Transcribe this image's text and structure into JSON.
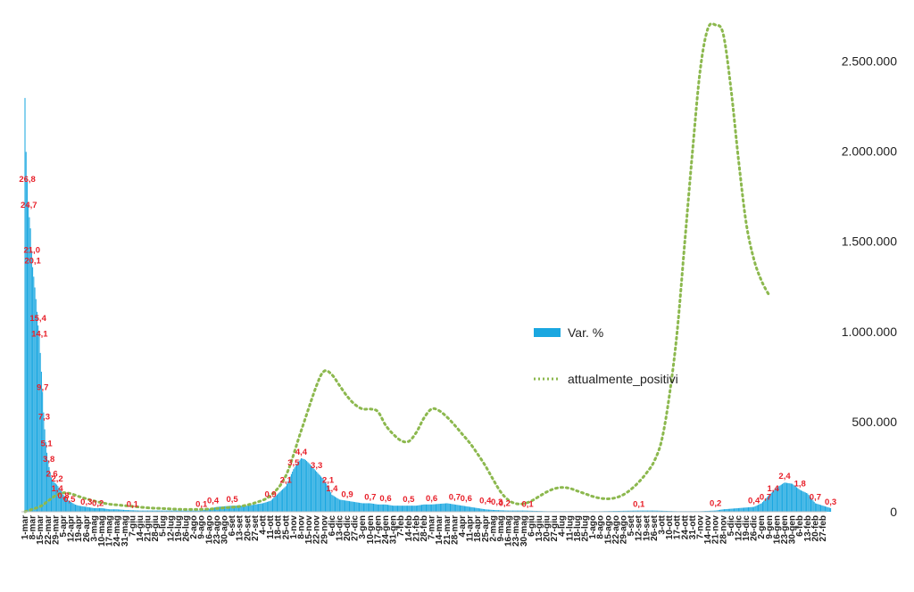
{
  "chart_data": {
    "type": "bar",
    "title": "",
    "xlabel": "",
    "ylabel": "",
    "secondary_ylim": [
      0,
      2700000
    ],
    "secondary_yticks": [
      "0",
      "500.000",
      "1.000.000",
      "1.500.000",
      "2.000.000",
      "2.500.000"
    ],
    "primary_ylim": [
      0,
      40
    ],
    "grid": false,
    "legend_position": "center-right",
    "colors": {
      "bars": "#1aa7e0",
      "line": "#8cb84e",
      "labels": "#e8202a"
    },
    "x_tick_labels": [
      "1-mar",
      "8-mar",
      "15-mar",
      "22-mar",
      "29-mar",
      "5-apr",
      "12-apr",
      "19-apr",
      "26-apr",
      "3-mag",
      "10-mag",
      "17-mag",
      "24-mag",
      "31-mag",
      "7-giu",
      "14-giu",
      "21-giu",
      "28-giu",
      "5-lug",
      "12-lug",
      "19-lug",
      "26-lug",
      "2-ago",
      "9-ago",
      "16-ago",
      "23-ago",
      "30-ago",
      "6-set",
      "13-set",
      "20-set",
      "27-set",
      "4-ott",
      "11-ott",
      "18-ott",
      "25-ott",
      "1-nov",
      "8-nov",
      "15-nov",
      "22-nov",
      "29-nov",
      "6-dic",
      "13-dic",
      "20-dic",
      "27-dic",
      "3-gen",
      "10-gen",
      "17-gen",
      "24-gen",
      "31-gen",
      "7-feb",
      "14-feb",
      "21-feb",
      "28-feb",
      "7-mar",
      "14-mar",
      "21-mar",
      "28-mar",
      "4-apr",
      "11-apr",
      "18-apr",
      "25-apr",
      "2-mag",
      "9-mag",
      "16-mag",
      "23-mag",
      "30-mag",
      "6-giu",
      "13-giu",
      "20-giu",
      "27-giu",
      "4-lug",
      "11-lug",
      "18-lug",
      "25-lug",
      "1-ago",
      "8-ago",
      "15-ago",
      "22-ago",
      "29-ago",
      "5-set",
      "12-set",
      "19-set",
      "26-set",
      "3-ott",
      "10-ott",
      "17-ott",
      "24-ott",
      "31-ott",
      "7-nov",
      "14-nov",
      "21-nov",
      "28-nov",
      "5-dic",
      "12-dic",
      "19-dic",
      "26-dic",
      "2-gen",
      "9-gen",
      "16-gen",
      "23-gen",
      "30-gen",
      "6-feb",
      "13-feb",
      "20-feb",
      "27-feb"
    ],
    "series": [
      {
        "name": "Var. %",
        "type": "bar",
        "axis": "primary",
        "points": [
          [
            0,
            34
          ],
          [
            0.1,
            30
          ],
          [
            0.2,
            29
          ],
          [
            0.3,
            26.8
          ],
          [
            0.4,
            25.5
          ],
          [
            0.5,
            24.7
          ],
          [
            0.6,
            24
          ],
          [
            0.7,
            23.5
          ],
          [
            0.8,
            22
          ],
          [
            0.9,
            21
          ],
          [
            1.0,
            20.1
          ],
          [
            1.2,
            19
          ],
          [
            1.5,
            17
          ],
          [
            1.7,
            15.4
          ],
          [
            1.9,
            14.1
          ],
          [
            2.1,
            12
          ],
          [
            2.3,
            9.7
          ],
          [
            2.5,
            7.3
          ],
          [
            2.8,
            5.1
          ],
          [
            3.1,
            3.8
          ],
          [
            3.5,
            2.6
          ],
          [
            4.2,
            2.2
          ],
          [
            5,
            1.4
          ],
          [
            5.5,
            1.0
          ],
          [
            6,
            0.8
          ],
          [
            6.5,
            0.6
          ],
          [
            7,
            0.5
          ],
          [
            8,
            0.4
          ],
          [
            9,
            0.3
          ],
          [
            10,
            0.3
          ],
          [
            11,
            0.2
          ],
          [
            12,
            0.2
          ],
          [
            13,
            0.15
          ],
          [
            15,
            0.1
          ],
          [
            17,
            0.1
          ],
          [
            20,
            0.1
          ],
          [
            22,
            0.1
          ],
          [
            23,
            0.1
          ],
          [
            25,
            0.4
          ],
          [
            27,
            0.5
          ],
          [
            29,
            0.5
          ],
          [
            31,
            0.7
          ],
          [
            32,
            0.9
          ],
          [
            33,
            1.5
          ],
          [
            34,
            2.1
          ],
          [
            35,
            3.5
          ],
          [
            35.5,
            4.0
          ],
          [
            36,
            4.4
          ],
          [
            36.5,
            4.3
          ],
          [
            37,
            4.0
          ],
          [
            38,
            3.3
          ],
          [
            39,
            2.6
          ],
          [
            39.5,
            2.1
          ],
          [
            40,
            1.4
          ],
          [
            41,
            1.0
          ],
          [
            42,
            0.9
          ],
          [
            43,
            0.8
          ],
          [
            44,
            0.7
          ],
          [
            45,
            0.7
          ],
          [
            46,
            0.6
          ],
          [
            47,
            0.6
          ],
          [
            48,
            0.5
          ],
          [
            49,
            0.5
          ],
          [
            50,
            0.5
          ],
          [
            51,
            0.5
          ],
          [
            52,
            0.6
          ],
          [
            53,
            0.6
          ],
          [
            54,
            0.65
          ],
          [
            55,
            0.7
          ],
          [
            56,
            0.6
          ],
          [
            57,
            0.5
          ],
          [
            58,
            0.4
          ],
          [
            59,
            0.3
          ],
          [
            60,
            0.2
          ],
          [
            61,
            0.15
          ],
          [
            63,
            0.1
          ],
          [
            65,
            0.1
          ],
          [
            68,
            0.05
          ],
          [
            70,
            0.05
          ],
          [
            75,
            0.05
          ],
          [
            80,
            0.1
          ],
          [
            82,
            0.1
          ],
          [
            85,
            0.05
          ],
          [
            88,
            0.05
          ],
          [
            90,
            0.1
          ],
          [
            91,
            0.2
          ],
          [
            93,
            0.3
          ],
          [
            95,
            0.4
          ],
          [
            96,
            0.7
          ],
          [
            97,
            1.4
          ],
          [
            98,
            2.0
          ],
          [
            99,
            2.4
          ],
          [
            100,
            2.3
          ],
          [
            101,
            1.8
          ],
          [
            102,
            1.5
          ],
          [
            103,
            0.7
          ],
          [
            104,
            0.5
          ],
          [
            105,
            0.3
          ]
        ]
      },
      {
        "name": "attualmente_positivi",
        "type": "line",
        "axis": "secondary",
        "points": [
          [
            0,
            500
          ],
          [
            2,
            30000
          ],
          [
            3,
            60000
          ],
          [
            4,
            90000
          ],
          [
            5,
            105000
          ],
          [
            6,
            100000
          ],
          [
            7,
            85000
          ],
          [
            8,
            72000
          ],
          [
            9,
            60000
          ],
          [
            10,
            50000
          ],
          [
            11,
            42000
          ],
          [
            12,
            38000
          ],
          [
            14,
            30000
          ],
          [
            16,
            22000
          ],
          [
            18,
            18000
          ],
          [
            20,
            14000
          ],
          [
            22,
            13000
          ],
          [
            24,
            15000
          ],
          [
            26,
            22000
          ],
          [
            28,
            30000
          ],
          [
            30,
            50000
          ],
          [
            32,
            90000
          ],
          [
            34,
            200000
          ],
          [
            36,
            450000
          ],
          [
            38,
            700000
          ],
          [
            39,
            780000
          ],
          [
            40,
            760000
          ],
          [
            41,
            700000
          ],
          [
            42,
            640000
          ],
          [
            43,
            595000
          ],
          [
            44,
            570000
          ],
          [
            45,
            570000
          ],
          [
            46,
            555000
          ],
          [
            47,
            480000
          ],
          [
            48,
            430000
          ],
          [
            49,
            395000
          ],
          [
            50,
            390000
          ],
          [
            51,
            440000
          ],
          [
            52,
            520000
          ],
          [
            53,
            570000
          ],
          [
            54,
            560000
          ],
          [
            55,
            525000
          ],
          [
            56,
            480000
          ],
          [
            57,
            430000
          ],
          [
            58,
            380000
          ],
          [
            59,
            320000
          ],
          [
            60,
            255000
          ],
          [
            61,
            180000
          ],
          [
            62,
            110000
          ],
          [
            63,
            65000
          ],
          [
            64,
            45000
          ],
          [
            65,
            45000
          ],
          [
            66,
            60000
          ],
          [
            67,
            85000
          ],
          [
            68,
            110000
          ],
          [
            69,
            128000
          ],
          [
            70,
            135000
          ],
          [
            71,
            130000
          ],
          [
            72,
            115000
          ],
          [
            73,
            100000
          ],
          [
            74,
            85000
          ],
          [
            75,
            75000
          ],
          [
            76,
            72000
          ],
          [
            77,
            78000
          ],
          [
            78,
            95000
          ],
          [
            79,
            125000
          ],
          [
            80,
            165000
          ],
          [
            81,
            215000
          ],
          [
            82,
            280000
          ],
          [
            83,
            400000
          ],
          [
            84,
            650000
          ],
          [
            85,
            1000000
          ],
          [
            86,
            1500000
          ],
          [
            87,
            2000000
          ],
          [
            88,
            2450000
          ],
          [
            89,
            2680000
          ],
          [
            90,
            2700000
          ],
          [
            91,
            2650000
          ],
          [
            92,
            2350000
          ],
          [
            93,
            1950000
          ],
          [
            94,
            1600000
          ],
          [
            95,
            1400000
          ],
          [
            96,
            1280000
          ],
          [
            97,
            1200000
          ]
        ]
      }
    ],
    "data_labels": [
      {
        "x": 0.3,
        "y": 26.8,
        "text": "26,8"
      },
      {
        "x": 0.5,
        "y": 24.7,
        "text": "24,7"
      },
      {
        "x": 0.9,
        "y": 21.0,
        "text": "21,0"
      },
      {
        "x": 1.0,
        "y": 20.1,
        "text": "20,1"
      },
      {
        "x": 1.7,
        "y": 15.4,
        "text": "15,4"
      },
      {
        "x": 1.9,
        "y": 14.1,
        "text": "14,1"
      },
      {
        "x": 2.3,
        "y": 9.7,
        "text": "9,7"
      },
      {
        "x": 2.5,
        "y": 7.3,
        "text": "7,3"
      },
      {
        "x": 2.8,
        "y": 5.1,
        "text": "5,1"
      },
      {
        "x": 3.1,
        "y": 3.8,
        "text": "3,8"
      },
      {
        "x": 3.5,
        "y": 2.6,
        "text": "2,6"
      },
      {
        "x": 4.2,
        "y": 2.2,
        "text": "2,2"
      },
      {
        "x": 4.2,
        "y": 1.4,
        "text": "1,4"
      },
      {
        "x": 5.0,
        "y": 0.8,
        "text": "0,8"
      },
      {
        "x": 5.8,
        "y": 0.5,
        "text": "0,5"
      },
      {
        "x": 8.0,
        "y": 0.3,
        "text": "0,3"
      },
      {
        "x": 9.5,
        "y": 0.2,
        "text": "0,2"
      },
      {
        "x": 14.0,
        "y": 0.1,
        "text": "0,1"
      },
      {
        "x": 23.0,
        "y": 0.1,
        "text": "0,1"
      },
      {
        "x": 24.5,
        "y": 0.4,
        "text": "0,4"
      },
      {
        "x": 27.0,
        "y": 0.5,
        "text": "0,5"
      },
      {
        "x": 32.0,
        "y": 0.9,
        "text": "0,9"
      },
      {
        "x": 34.0,
        "y": 2.1,
        "text": "2,1"
      },
      {
        "x": 35.0,
        "y": 3.5,
        "text": "3,5"
      },
      {
        "x": 36.0,
        "y": 4.4,
        "text": "4,4"
      },
      {
        "x": 38.0,
        "y": 3.3,
        "text": "3,3"
      },
      {
        "x": 39.5,
        "y": 2.1,
        "text": "2,1"
      },
      {
        "x": 40.0,
        "y": 1.4,
        "text": "1,4"
      },
      {
        "x": 42.0,
        "y": 0.9,
        "text": "0,9"
      },
      {
        "x": 45.0,
        "y": 0.7,
        "text": "0,7"
      },
      {
        "x": 47.0,
        "y": 0.6,
        "text": "0,6"
      },
      {
        "x": 50.0,
        "y": 0.5,
        "text": "0,5"
      },
      {
        "x": 53.0,
        "y": 0.6,
        "text": "0,6"
      },
      {
        "x": 56.0,
        "y": 0.7,
        "text": "0,7"
      },
      {
        "x": 57.5,
        "y": 0.6,
        "text": "0,6"
      },
      {
        "x": 60.0,
        "y": 0.4,
        "text": "0,4"
      },
      {
        "x": 61.5,
        "y": 0.3,
        "text": "0,3"
      },
      {
        "x": 62.5,
        "y": 0.2,
        "text": "0,2"
      },
      {
        "x": 65.5,
        "y": 0.1,
        "text": "0,1"
      },
      {
        "x": 80.0,
        "y": 0.1,
        "text": "0,1"
      },
      {
        "x": 90.0,
        "y": 0.2,
        "text": "0,2"
      },
      {
        "x": 95.0,
        "y": 0.4,
        "text": "0,4"
      },
      {
        "x": 96.5,
        "y": 0.7,
        "text": "0,7"
      },
      {
        "x": 97.5,
        "y": 1.4,
        "text": "1,4"
      },
      {
        "x": 99.0,
        "y": 2.4,
        "text": "2,4"
      },
      {
        "x": 101.0,
        "y": 1.8,
        "text": "1,8"
      },
      {
        "x": 103.0,
        "y": 0.7,
        "text": "0,7"
      },
      {
        "x": 105.0,
        "y": 0.3,
        "text": "0,3"
      }
    ]
  }
}
